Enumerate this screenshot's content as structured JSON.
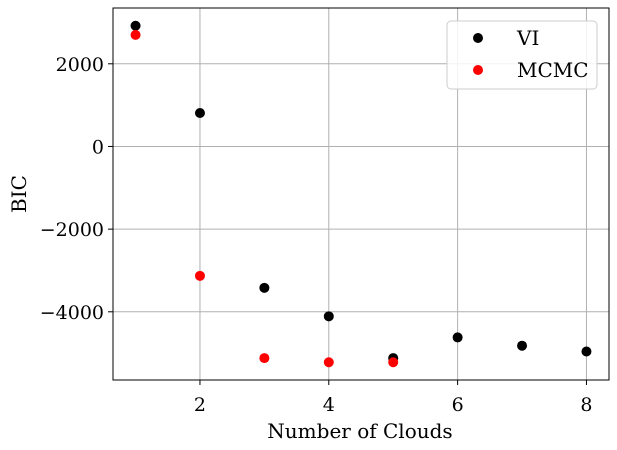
{
  "chart_data": {
    "type": "scatter",
    "title": "",
    "xlabel": "Number of Clouds",
    "ylabel": "BIC",
    "xlim": [
      0.65,
      8.35
    ],
    "ylim": [
      -5650,
      3350
    ],
    "xticks": [
      2,
      4,
      6,
      8
    ],
    "xtick_labels": [
      "2",
      "4",
      "6",
      "8"
    ],
    "yticks": [
      -4000,
      -2000,
      0,
      2000
    ],
    "ytick_labels": [
      "−4000",
      "−2000",
      "0",
      "2000"
    ],
    "grid": true,
    "legend_position": "top-right",
    "series": [
      {
        "name": "VI",
        "color": "#000000",
        "x": [
          1,
          2,
          3,
          4,
          5,
          6,
          7,
          8
        ],
        "y": [
          2920,
          810,
          -3420,
          -4110,
          -5120,
          -4620,
          -4820,
          -4960
        ]
      },
      {
        "name": "MCMC",
        "color": "#ff0000",
        "x": [
          1,
          2,
          3,
          4,
          5
        ],
        "y": [
          2700,
          -3130,
          -5120,
          -5220,
          -5220
        ]
      }
    ]
  }
}
